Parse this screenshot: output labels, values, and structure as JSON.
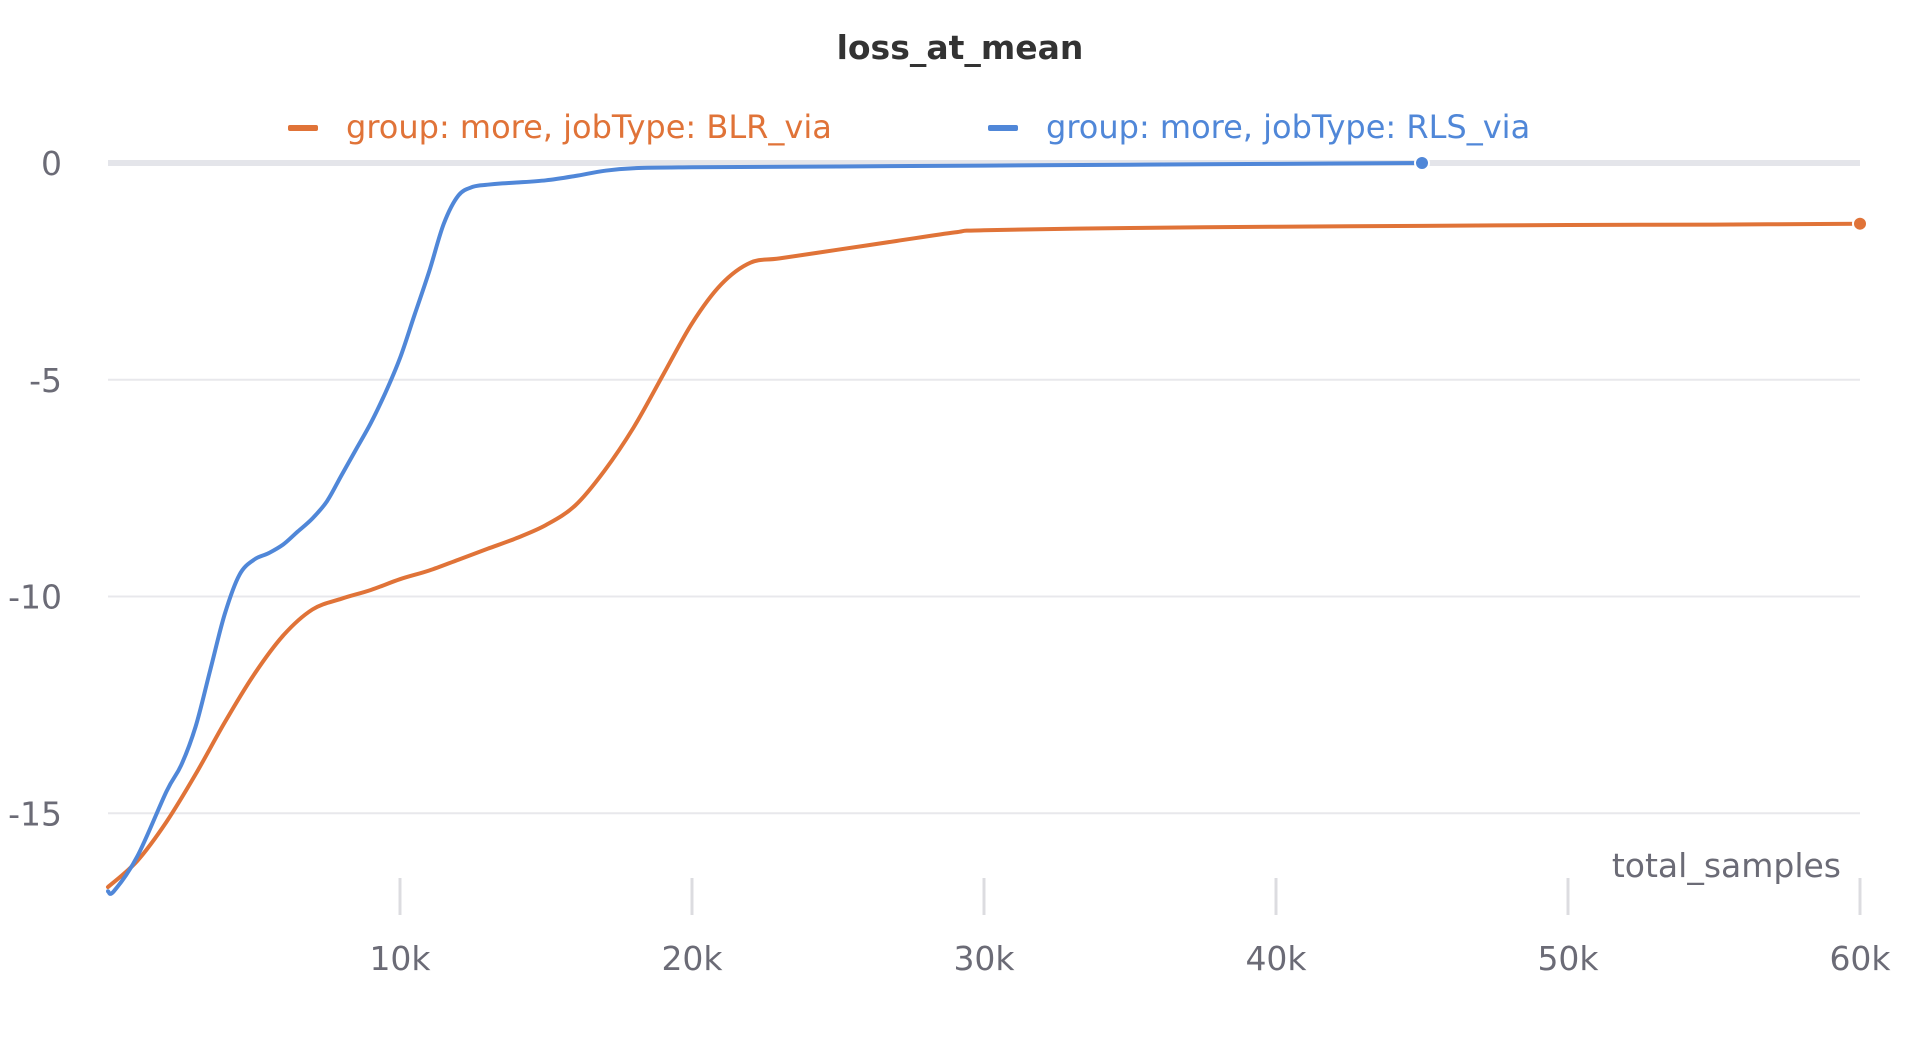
{
  "chart_data": {
    "type": "line",
    "title": "loss_at_mean",
    "xlabel": "total_samples",
    "ylabel": "",
    "xlim": [
      0,
      60000
    ],
    "ylim": [
      -17,
      0
    ],
    "x_ticks": [
      {
        "value": 10000,
        "label": "10k"
      },
      {
        "value": 20000,
        "label": "20k"
      },
      {
        "value": 30000,
        "label": "30k"
      },
      {
        "value": 40000,
        "label": "40k"
      },
      {
        "value": 50000,
        "label": "50k"
      },
      {
        "value": 60000,
        "label": "60k"
      }
    ],
    "y_ticks": [
      {
        "value": 0,
        "label": "0"
      },
      {
        "value": -5,
        "label": "-5"
      },
      {
        "value": -10,
        "label": "-10"
      },
      {
        "value": -15,
        "label": "-15"
      }
    ],
    "grid": true,
    "legend_position": "top",
    "series": [
      {
        "name": "group: more, jobType: BLR_via",
        "color": "#e07338",
        "end_marker": true,
        "x": [
          0,
          1000,
          2000,
          3000,
          4000,
          5000,
          6000,
          7000,
          8000,
          9000,
          10000,
          11000,
          12000,
          13000,
          14000,
          15000,
          16000,
          17000,
          18000,
          19000,
          20000,
          21000,
          22000,
          23000,
          25000,
          27000,
          29000,
          30000,
          35000,
          40000,
          45000,
          50000,
          55000,
          60000
        ],
        "y": [
          -16.7,
          -16.1,
          -15.2,
          -14.1,
          -12.9,
          -11.8,
          -10.9,
          -10.3,
          -10.05,
          -9.85,
          -9.6,
          -9.4,
          -9.15,
          -8.9,
          -8.65,
          -8.35,
          -7.9,
          -7.1,
          -6.1,
          -4.9,
          -3.7,
          -2.8,
          -2.3,
          -2.2,
          -2.0,
          -1.8,
          -1.6,
          -1.55,
          -1.5,
          -1.47,
          -1.45,
          -1.43,
          -1.42,
          -1.4
        ]
      },
      {
        "name": "group: more, jobType: RLS_via",
        "color": "#5087d8",
        "end_marker": true,
        "x": [
          0,
          200,
          1000,
          2000,
          2500,
          3000,
          3500,
          4000,
          4500,
          5000,
          5500,
          6000,
          6500,
          7000,
          7500,
          8000,
          8500,
          9000,
          9500,
          10000,
          10500,
          11000,
          11500,
          12000,
          12500,
          13000,
          13500,
          14000,
          15000,
          16000,
          17000,
          18000,
          20000,
          25000,
          30000,
          35000,
          40000,
          45000
        ],
        "y": [
          -16.8,
          -16.8,
          -16.0,
          -14.5,
          -13.9,
          -13.0,
          -11.7,
          -10.4,
          -9.5,
          -9.15,
          -9.0,
          -8.8,
          -8.5,
          -8.2,
          -7.8,
          -7.2,
          -6.6,
          -6.0,
          -5.3,
          -4.5,
          -3.5,
          -2.5,
          -1.4,
          -0.75,
          -0.55,
          -0.5,
          -0.47,
          -0.45,
          -0.4,
          -0.3,
          -0.18,
          -0.12,
          -0.1,
          -0.08,
          -0.06,
          -0.04,
          -0.02,
          0.0
        ]
      }
    ]
  }
}
